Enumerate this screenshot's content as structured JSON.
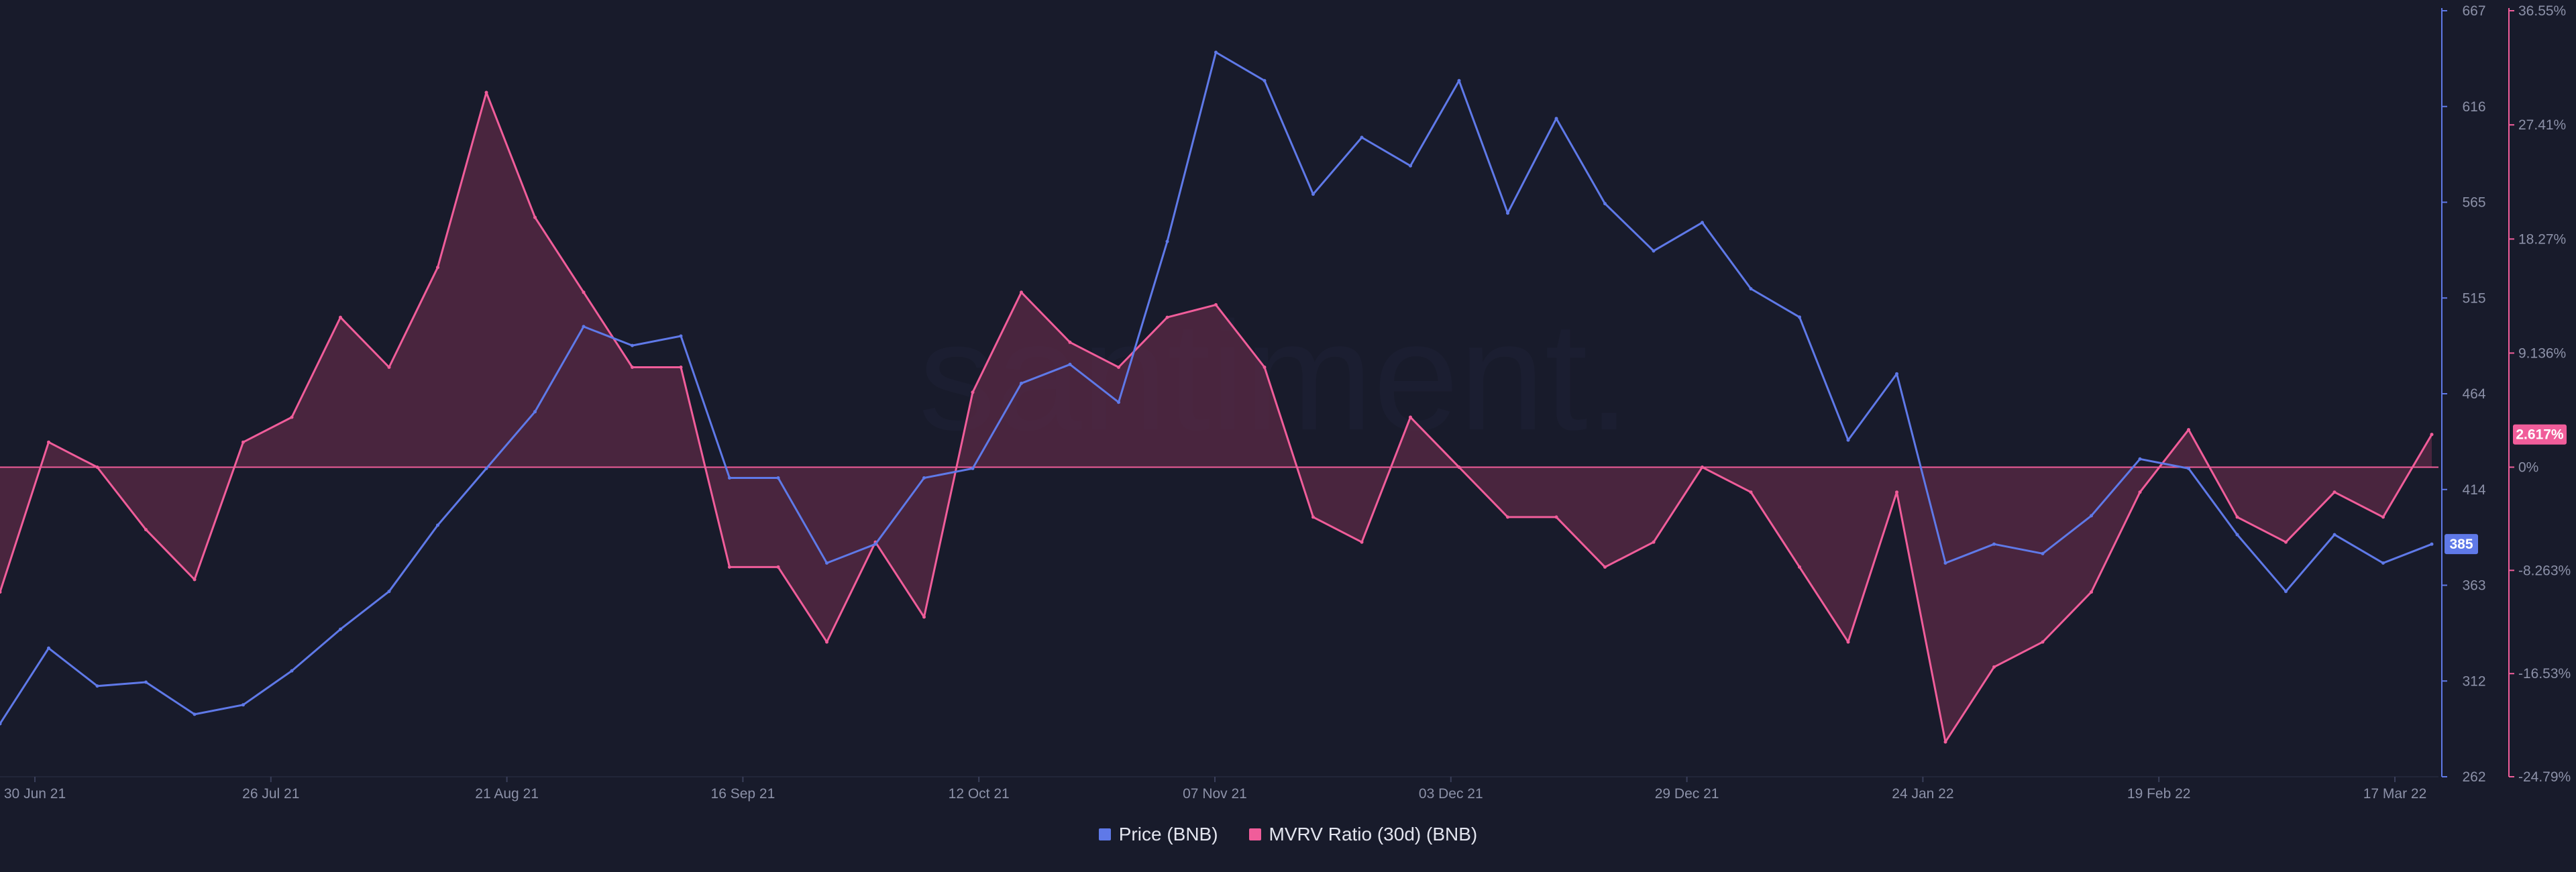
{
  "watermark": "santiment.",
  "legend": {
    "price": "Price (BNB)",
    "mvrv": "MVRV Ratio (30d) (BNB)"
  },
  "colors": {
    "background": "#181b2b",
    "price": "#5f79e8",
    "mvrv": "#f05d9a",
    "mvrv_fill": "#5a2a45",
    "zero_line": "#f05d9a",
    "axis_text": "#8c91a8"
  },
  "chart_data": {
    "type": "line",
    "title": "",
    "xlabel": "",
    "x_ticks": [
      "30 Jun 21",
      "26 Jul 21",
      "21 Aug 21",
      "16 Sep 21",
      "12 Oct 21",
      "07 Nov 21",
      "03 Dec 21",
      "29 Dec 21",
      "24 Jan 22",
      "19 Feb 22",
      "17 Mar 22"
    ],
    "y_left_ticks": [
      "667",
      "616",
      "565",
      "515",
      "464",
      "414",
      "363",
      "312",
      "262"
    ],
    "y_left_lim": [
      262,
      667
    ],
    "y_right_ticks": [
      "36.55%",
      "27.41%",
      "18.27%",
      "9.136%",
      "0%",
      "-8.263%",
      "-16.53%",
      "-24.79%"
    ],
    "y_right_lim": [
      -24.79,
      36.55
    ],
    "current_badges": {
      "price": "385",
      "mvrv": "2.617%"
    },
    "grid": false,
    "legend_position": "bottom-center",
    "series": [
      {
        "name": "Price (BNB)",
        "axis": "left",
        "x": [
          "30 Jun 21",
          "05 Jul 21",
          "10 Jul 21",
          "15 Jul 21",
          "20 Jul 21",
          "26 Jul 21",
          "31 Jul 21",
          "05 Aug 21",
          "10 Aug 21",
          "15 Aug 21",
          "21 Aug 21",
          "26 Aug 21",
          "31 Aug 21",
          "05 Sep 21",
          "10 Sep 21",
          "16 Sep 21",
          "21 Sep 21",
          "26 Sep 21",
          "01 Oct 21",
          "06 Oct 21",
          "12 Oct 21",
          "17 Oct 21",
          "22 Oct 21",
          "27 Oct 21",
          "01 Nov 21",
          "07 Nov 21",
          "12 Nov 21",
          "17 Nov 21",
          "22 Nov 21",
          "27 Nov 21",
          "03 Dec 21",
          "08 Dec 21",
          "13 Dec 21",
          "18 Dec 21",
          "23 Dec 21",
          "29 Dec 21",
          "03 Jan 22",
          "08 Jan 22",
          "13 Jan 22",
          "18 Jan 22",
          "24 Jan 22",
          "29 Jan 22",
          "03 Feb 22",
          "08 Feb 22",
          "13 Feb 22",
          "19 Feb 22",
          "24 Feb 22",
          "01 Mar 22",
          "06 Mar 22",
          "11 Mar 22",
          "17 Mar 22"
        ],
        "values": [
          290,
          330,
          310,
          312,
          295,
          300,
          318,
          340,
          360,
          395,
          425,
          455,
          500,
          490,
          495,
          420,
          420,
          375,
          385,
          420,
          425,
          470,
          480,
          460,
          545,
          645,
          630,
          570,
          600,
          585,
          630,
          560,
          610,
          565,
          540,
          555,
          520,
          505,
          440,
          475,
          375,
          385,
          380,
          400,
          430,
          425,
          390,
          360,
          390,
          375,
          385
        ]
      },
      {
        "name": "MVRV Ratio (30d) (BNB)",
        "axis": "right",
        "x": [
          "30 Jun 21",
          "05 Jul 21",
          "10 Jul 21",
          "15 Jul 21",
          "20 Jul 21",
          "26 Jul 21",
          "31 Jul 21",
          "05 Aug 21",
          "10 Aug 21",
          "15 Aug 21",
          "21 Aug 21",
          "26 Aug 21",
          "31 Aug 21",
          "05 Sep 21",
          "10 Sep 21",
          "16 Sep 21",
          "21 Sep 21",
          "26 Sep 21",
          "01 Oct 21",
          "06 Oct 21",
          "12 Oct 21",
          "17 Oct 21",
          "22 Oct 21",
          "27 Oct 21",
          "01 Nov 21",
          "07 Nov 21",
          "12 Nov 21",
          "17 Nov 21",
          "22 Nov 21",
          "27 Nov 21",
          "03 Dec 21",
          "08 Dec 21",
          "13 Dec 21",
          "18 Dec 21",
          "23 Dec 21",
          "29 Dec 21",
          "03 Jan 22",
          "08 Jan 22",
          "13 Jan 22",
          "18 Jan 22",
          "24 Jan 22",
          "29 Jan 22",
          "03 Feb 22",
          "08 Feb 22",
          "13 Feb 22",
          "19 Feb 22",
          "24 Feb 22",
          "01 Mar 22",
          "06 Mar 22",
          "11 Mar 22",
          "17 Mar 22"
        ],
        "values": [
          -10,
          2,
          0,
          -5,
          -9,
          2,
          4,
          12,
          8,
          16,
          30,
          20,
          14,
          8,
          8,
          -8,
          -8,
          -14,
          -6,
          -12,
          6,
          14,
          10,
          8,
          12,
          13,
          8,
          -4,
          -6,
          4,
          0,
          -4,
          -4,
          -8,
          -6,
          0,
          -2,
          -8,
          -14,
          -2,
          -22,
          -16,
          -14,
          -10,
          -2,
          3,
          -4,
          -6,
          -2,
          -4,
          2.617
        ]
      }
    ]
  }
}
